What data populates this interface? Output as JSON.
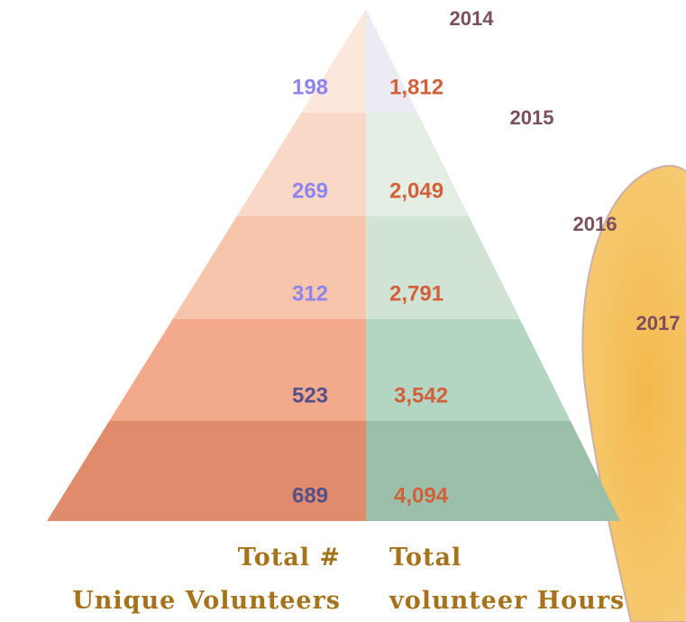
{
  "rows": [
    {
      "year": "2014",
      "volunteers": "198",
      "hours": "1,812"
    },
    {
      "year": "2015",
      "volunteers": "269",
      "hours": "2,049"
    },
    {
      "year": "2016",
      "volunteers": "312",
      "hours": "2,791"
    },
    {
      "year": "2017",
      "volunteers": "523",
      "hours": "3,542"
    },
    {
      "year": null,
      "volunteers": "689",
      "hours": "4,094"
    }
  ],
  "left_label": {
    "line1": "Total #",
    "line2": "Unique Volunteers"
  },
  "right_label": {
    "line1": "Total",
    "line2": "volunteer Hours"
  }
}
